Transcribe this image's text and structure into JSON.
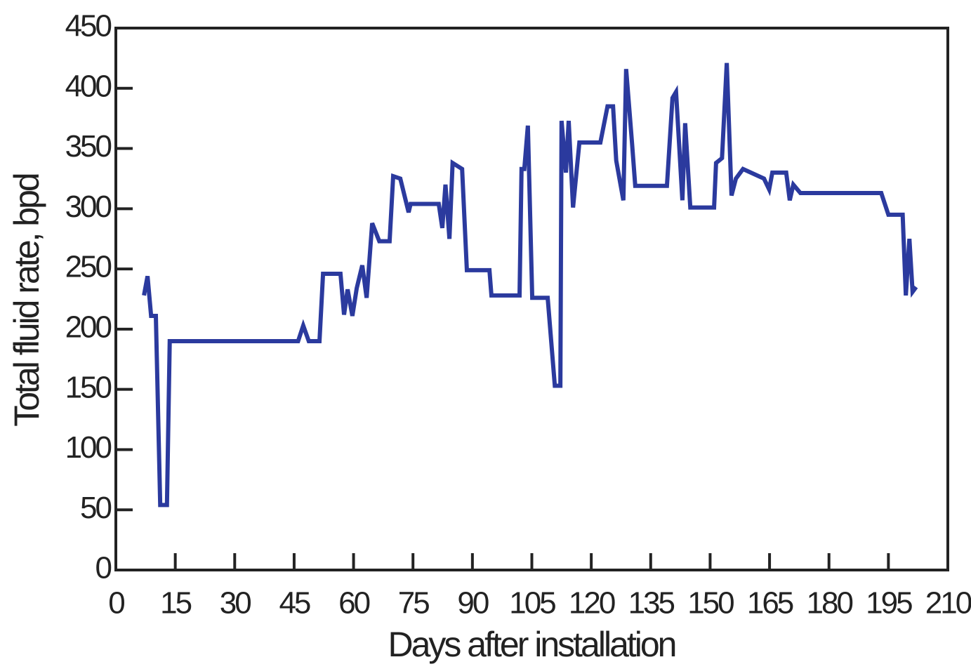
{
  "chart_data": {
    "type": "line",
    "x_label": "Days after installation",
    "y_label": "Total fluid rate, bpd",
    "xlim": [
      0,
      210
    ],
    "xticks": [
      0,
      15,
      30,
      45,
      60,
      75,
      90,
      105,
      120,
      135,
      150,
      165,
      180,
      195,
      210
    ],
    "ylim": [
      0,
      450
    ],
    "yticks": [
      0,
      50,
      100,
      150,
      200,
      250,
      300,
      350,
      400,
      450
    ],
    "series": [
      {
        "color": "#2b3a9e",
        "x": [
          7.1,
          8,
          8.9,
          10.1,
          11.2,
          12.9,
          13.6,
          46,
          47.3,
          48.7,
          51.4,
          52.3,
          56.7,
          57.6,
          58.5,
          59.7,
          60.8,
          62.2,
          63.3,
          64.7,
          66.5,
          69.1,
          70,
          71.8,
          73.9,
          74.4,
          81.5,
          82.4,
          83.2,
          84.2,
          85,
          87.4,
          88.6,
          94.3,
          94.8,
          101.9,
          102.4,
          103.1,
          104,
          105.1,
          109,
          110.8,
          112.2,
          112.5,
          113.6,
          114.3,
          115.4,
          117,
          122.3,
          124.1,
          125.5,
          126.3,
          128.1,
          128.8,
          130.3,
          131.1,
          139.1,
          140.5,
          141.4,
          143,
          143.7,
          145,
          151,
          151.5,
          153,
          154.2,
          155.4,
          156.5,
          158.3,
          163.6,
          164.9,
          165.7,
          169.2,
          170.1,
          171,
          172.8,
          193.2,
          195,
          198.6,
          199.4,
          200.3,
          201.1,
          202
        ],
        "values": [
          228,
          244,
          211,
          211,
          54,
          54,
          190,
          190,
          203,
          190,
          190,
          246,
          246,
          212,
          233,
          211,
          234,
          253,
          226,
          288,
          273,
          273,
          327,
          325,
          297,
          304,
          304,
          284,
          320,
          275,
          338,
          333,
          249,
          249,
          228,
          228,
          333,
          333,
          369,
          226,
          226,
          153,
          153,
          373,
          330,
          373,
          301,
          355,
          355,
          385,
          385,
          340,
          307,
          416,
          354,
          319,
          319,
          392,
          397,
          307,
          371,
          301,
          301,
          338,
          342,
          421,
          311,
          325,
          333,
          325,
          316,
          330,
          330,
          307,
          320,
          313,
          313,
          295,
          295,
          228,
          275,
          231,
          235
        ]
      }
    ]
  }
}
